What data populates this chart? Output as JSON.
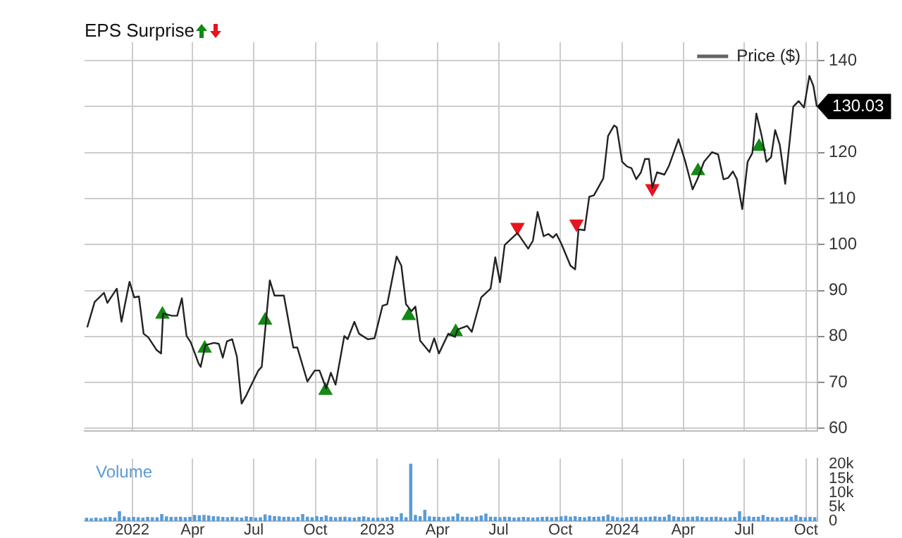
{
  "chart_data": [
    {
      "type": "line",
      "title": "EPS Surprise",
      "xlim": [
        "2021-10-22",
        "2024-10-18"
      ],
      "ylim": [
        59.5,
        144
      ],
      "yticks": [
        60,
        70,
        80,
        90,
        100,
        110,
        120,
        {
          "value": 130,
          "label": null
        },
        140
      ],
      "xticks": [
        {
          "value": "2022-01-01",
          "label": null
        },
        {
          "value": "2022-04-01",
          "label": null
        },
        {
          "value": "2022-07-01",
          "label": null
        },
        {
          "value": "2022-10-01",
          "label": null
        },
        {
          "value": "2023-01-01",
          "label": null
        },
        {
          "value": "2023-04-01",
          "label": null
        },
        {
          "value": "2023-07-01",
          "label": null
        },
        {
          "value": "2023-10-01",
          "label": null
        },
        {
          "value": "2024-01-01",
          "label": null
        },
        {
          "value": "2024-04-01",
          "label": null
        },
        {
          "value": "2024-07-01",
          "label": null
        },
        {
          "value": "2024-10-01",
          "label": null
        }
      ],
      "tick_labels": "y",
      "grid": true,
      "legend": "top right",
      "annotations": [
        {
          "text": "130.03",
          "x": "2024-10-17",
          "y": 130.03
        }
      ],
      "series": [
        {
          "name": "Price ($)",
          "type": "line",
          "color": "#222222",
          "marker": "none",
          "x": [
            "2021-10-26",
            "2021-11-06",
            "2021-11-20",
            "2021-11-25",
            "2021-12-09",
            "2021-12-16",
            "2021-12-28",
            "2022-01-04",
            "2022-01-11",
            "2022-01-18",
            "2022-01-25",
            "2022-02-06",
            "2022-02-13",
            "2022-02-16",
            "2022-03-01",
            "2022-03-09",
            "2022-03-16",
            "2022-03-23",
            "2022-03-29",
            "2022-04-10",
            "2022-04-13",
            "2022-04-20",
            "2022-05-03",
            "2022-05-10",
            "2022-05-16",
            "2022-05-22",
            "2022-05-30",
            "2022-06-06",
            "2022-06-13",
            "2022-06-20",
            "2022-07-08",
            "2022-07-13",
            "2022-07-25",
            "2022-08-01",
            "2022-08-15",
            "2022-08-29",
            "2022-09-04",
            "2022-09-19",
            "2022-09-30",
            "2022-10-07",
            "2022-10-17",
            "2022-10-24",
            "2022-10-31",
            "2022-11-13",
            "2022-11-18",
            "2022-11-28",
            "2022-12-05",
            "2022-12-18",
            "2022-12-28",
            "2023-01-09",
            "2023-01-16",
            "2023-01-30",
            "2023-02-06",
            "2023-02-13",
            "2023-02-21",
            "2023-02-27",
            "2023-03-06",
            "2023-03-20",
            "2023-03-27",
            "2023-04-03",
            "2023-04-17",
            "2023-04-27",
            "2023-05-01",
            "2023-05-15",
            "2023-05-22",
            "2023-06-05",
            "2023-06-19",
            "2023-06-26",
            "2023-07-03",
            "2023-07-10",
            "2023-07-29",
            "2023-08-14",
            "2023-08-21",
            "2023-08-28",
            "2023-09-06",
            "2023-09-13",
            "2023-09-20",
            "2023-09-25",
            "2023-10-02",
            "2023-10-16",
            "2023-10-23",
            "2023-10-28",
            "2023-11-06",
            "2023-11-13",
            "2023-11-20",
            "2023-12-04",
            "2023-12-11",
            "2023-12-20",
            "2023-12-24",
            "2024-01-01",
            "2024-01-08",
            "2024-01-15",
            "2024-01-22",
            "2024-01-29",
            "2024-02-04",
            "2024-02-10",
            "2024-02-15",
            "2024-02-22",
            "2024-03-04",
            "2024-03-11",
            "2024-03-25",
            "2024-04-04",
            "2024-04-15",
            "2024-04-23",
            "2024-05-02",
            "2024-05-14",
            "2024-05-23",
            "2024-05-31",
            "2024-06-07",
            "2024-06-14",
            "2024-06-20",
            "2024-06-28",
            "2024-07-06",
            "2024-07-13",
            "2024-07-19",
            "2024-07-27",
            "2024-08-03",
            "2024-08-10",
            "2024-08-16",
            "2024-08-23",
            "2024-08-31",
            "2024-09-12",
            "2024-09-20",
            "2024-09-28",
            "2024-10-06",
            "2024-10-12",
            "2024-10-17"
          ],
          "values": [
            82.0,
            87.5,
            89.5,
            87.3,
            90.4,
            83.2,
            91.9,
            88.5,
            88.7,
            80.6,
            79.8,
            77.1,
            76.3,
            85.0,
            84.5,
            84.5,
            88.3,
            80.1,
            78.8,
            74.1,
            73.4,
            78.1,
            78.6,
            78.4,
            75.4,
            78.9,
            79.4,
            75.6,
            65.4,
            67.2,
            72.6,
            73.4,
            92.2,
            88.9,
            88.9,
            77.6,
            77.6,
            70.2,
            72.6,
            72.6,
            68.7,
            72.1,
            69.5,
            80.1,
            79.4,
            83.2,
            80.6,
            79.4,
            79.6,
            86.7,
            87.0,
            97.4,
            95.4,
            87.0,
            85.5,
            86.5,
            79.1,
            76.6,
            79.6,
            76.3,
            80.6,
            79.9,
            81.5,
            82.3,
            81.0,
            88.5,
            90.4,
            97.2,
            91.8,
            99.9,
            102.5,
            99.1,
            100.8,
            107.1,
            101.8,
            102.3,
            101.5,
            102.3,
            100.3,
            95.4,
            94.6,
            103.3,
            103.1,
            110.4,
            110.7,
            114.4,
            123.6,
            125.9,
            125.5,
            118.0,
            117.0,
            116.6,
            114.2,
            115.7,
            118.6,
            118.6,
            112.4,
            115.7,
            115.2,
            117.2,
            122.9,
            118.1,
            112.0,
            114.5,
            118.0,
            120.1,
            119.6,
            114.2,
            114.5,
            115.9,
            114.2,
            107.7,
            118.0,
            119.9,
            128.5,
            123.6,
            118.0,
            119.0,
            124.9,
            121.6,
            113.2,
            130.0,
            131.2,
            129.8,
            136.7,
            134.5,
            130.0
          ]
        },
        {
          "type": "scatter",
          "color": "#138a13",
          "marker": "triangle",
          "x": [
            "2022-02-15",
            "2022-04-19",
            "2022-07-18",
            "2022-10-16",
            "2023-02-17",
            "2023-04-28",
            "2024-04-23",
            "2024-07-23"
          ],
          "values": [
            84.8,
            77.4,
            83.5,
            68.2,
            84.5,
            81.0,
            116.0,
            121.3
          ]
        },
        {
          "type": "scatter",
          "color": "#e8141e",
          "marker": "triangle",
          "x": [
            "2023-07-29",
            "2023-10-25",
            "2024-02-15"
          ],
          "values": [
            103.8,
            104.5,
            112.2
          ]
        }
      ]
    },
    {
      "type": "bar",
      "xlim": [
        "2021-10-22",
        "2024-10-18"
      ],
      "ylim": [
        0,
        22000
      ],
      "grid": "x",
      "yticks": [
        {
          "value": 0,
          "label": "0"
        },
        {
          "value": 5000,
          "label": "5k"
        },
        {
          "value": 10000,
          "label": "10k"
        },
        {
          "value": 15000,
          "label": "15k"
        },
        {
          "value": 20000,
          "label": "20k"
        }
      ],
      "xticks": [
        {
          "value": "2022-01-01",
          "label": "2022"
        },
        {
          "value": "2022-04-01",
          "label": "Apr"
        },
        {
          "value": "2022-07-01",
          "label": "Jul"
        },
        {
          "value": "2022-10-01",
          "label": "Oct"
        },
        {
          "value": "2023-01-01",
          "label": "2023"
        },
        {
          "value": "2023-04-01",
          "label": "Apr"
        },
        {
          "value": "2023-07-01",
          "label": "Jul"
        },
        {
          "value": "2023-10-01",
          "label": "Oct"
        },
        {
          "value": "2024-01-01",
          "label": "2024"
        },
        {
          "value": "2024-04-01",
          "label": "Apr"
        },
        {
          "value": "2024-07-01",
          "label": "Jul"
        },
        {
          "value": "2024-10-01",
          "label": "Oct"
        }
      ],
      "series": [
        {
          "name": "Volume",
          "color": "#5b9bd5",
          "x": [
            "2021-10-25",
            "2021-11-01",
            "2021-11-08",
            "2021-11-15",
            "2021-11-22",
            "2021-11-29",
            "2021-12-06",
            "2021-12-13",
            "2021-12-20",
            "2021-12-27",
            "2022-01-03",
            "2022-01-10",
            "2022-01-17",
            "2022-01-24",
            "2022-01-31",
            "2022-02-07",
            "2022-02-14",
            "2022-02-21",
            "2022-02-28",
            "2022-03-07",
            "2022-03-14",
            "2022-03-21",
            "2022-03-28",
            "2022-04-04",
            "2022-04-11",
            "2022-04-18",
            "2022-04-25",
            "2022-05-02",
            "2022-05-09",
            "2022-05-16",
            "2022-05-23",
            "2022-05-30",
            "2022-06-06",
            "2022-06-13",
            "2022-06-20",
            "2022-06-27",
            "2022-07-04",
            "2022-07-11",
            "2022-07-18",
            "2022-07-25",
            "2022-08-01",
            "2022-08-08",
            "2022-08-15",
            "2022-08-22",
            "2022-08-29",
            "2022-09-05",
            "2022-09-12",
            "2022-09-19",
            "2022-09-26",
            "2022-10-03",
            "2022-10-10",
            "2022-10-17",
            "2022-10-24",
            "2022-10-31",
            "2022-11-07",
            "2022-11-14",
            "2022-11-21",
            "2022-11-28",
            "2022-12-05",
            "2022-12-12",
            "2022-12-19",
            "2022-12-26",
            "2023-01-02",
            "2023-01-09",
            "2023-01-16",
            "2023-01-23",
            "2023-01-30",
            "2023-02-06",
            "2023-02-13",
            "2023-02-20",
            "2023-02-27",
            "2023-03-06",
            "2023-03-13",
            "2023-03-20",
            "2023-03-27",
            "2023-04-03",
            "2023-04-10",
            "2023-04-17",
            "2023-04-24",
            "2023-05-01",
            "2023-05-08",
            "2023-05-15",
            "2023-05-22",
            "2023-05-29",
            "2023-06-05",
            "2023-06-12",
            "2023-06-19",
            "2023-06-26",
            "2023-07-03",
            "2023-07-10",
            "2023-07-17",
            "2023-07-24",
            "2023-07-31",
            "2023-08-07",
            "2023-08-14",
            "2023-08-21",
            "2023-08-28",
            "2023-09-04",
            "2023-09-11",
            "2023-09-18",
            "2023-09-25",
            "2023-10-02",
            "2023-10-09",
            "2023-10-16",
            "2023-10-23",
            "2023-10-30",
            "2023-11-06",
            "2023-11-13",
            "2023-11-20",
            "2023-11-27",
            "2023-12-04",
            "2023-12-11",
            "2023-12-18",
            "2023-12-25",
            "2024-01-01",
            "2024-01-08",
            "2024-01-15",
            "2024-01-22",
            "2024-01-29",
            "2024-02-05",
            "2024-02-12",
            "2024-02-19",
            "2024-02-26",
            "2024-03-04",
            "2024-03-11",
            "2024-03-18",
            "2024-03-25",
            "2024-04-01",
            "2024-04-08",
            "2024-04-15",
            "2024-04-22",
            "2024-04-29",
            "2024-05-06",
            "2024-05-13",
            "2024-05-20",
            "2024-05-27",
            "2024-06-03",
            "2024-06-10",
            "2024-06-17",
            "2024-06-24",
            "2024-07-01",
            "2024-07-08",
            "2024-07-15",
            "2024-07-22",
            "2024-07-29",
            "2024-08-05",
            "2024-08-12",
            "2024-08-19",
            "2024-08-26",
            "2024-09-02",
            "2024-09-09",
            "2024-09-16",
            "2024-09-23",
            "2024-09-30",
            "2024-10-07",
            "2024-10-14"
          ],
          "values": [
            1000,
            900,
            1100,
            800,
            1200,
            1300,
            1100,
            3300,
            1500,
            1200,
            1300,
            1200,
            1100,
            1300,
            1200,
            1200,
            2300,
            1500,
            1300,
            1300,
            1400,
            1200,
            1300,
            2000,
            1900,
            2000,
            1800,
            1600,
            1500,
            1300,
            1200,
            1400,
            1200,
            1100,
            1500,
            1300,
            1100,
            1200,
            2200,
            1900,
            1600,
            1500,
            1300,
            1400,
            1200,
            1300,
            2300,
            1400,
            1200,
            1600,
            1300,
            1800,
            1400,
            1200,
            1300,
            1400,
            1200,
            1100,
            1300,
            1500,
            1200,
            1000,
            1100,
            1000,
            1200,
            1500,
            1300,
            2600,
            1200,
            20000,
            2000,
            1600,
            3800,
            1500,
            1400,
            1300,
            1200,
            1400,
            1500,
            2500,
            1400,
            1300,
            1200,
            1500,
            1800,
            2500,
            1400,
            1300,
            1200,
            1400,
            1300,
            1100,
            1200,
            1300,
            1200,
            1100,
            1200,
            1300,
            1400,
            1200,
            1300,
            1500,
            1700,
            1400,
            1600,
            1300,
            1200,
            1500,
            1300,
            1400,
            1600,
            2100,
            1500,
            1200,
            1100,
            1200,
            1300,
            1400,
            1200,
            1300,
            1400,
            1500,
            1300,
            1400,
            2100,
            1500,
            1300,
            1200,
            1300,
            1400,
            1500,
            1300,
            1200,
            1300,
            1400,
            1200,
            1100,
            1200,
            1300,
            3300,
            1400,
            1500,
            1300,
            1400,
            2000,
            1300,
            1200,
            1100,
            1300,
            1200,
            1400,
            2000,
            1300,
            1200,
            1300,
            1200
          ]
        }
      ]
    }
  ]
}
